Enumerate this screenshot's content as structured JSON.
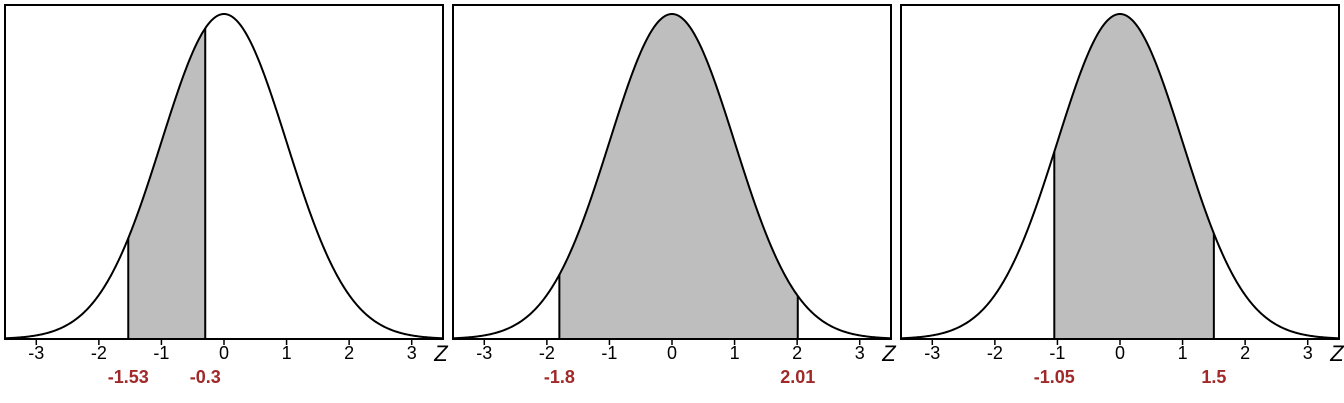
{
  "chart_data": [
    {
      "type": "area",
      "title": "",
      "xlabel": "Z",
      "ylabel": "",
      "xlim": [
        -3.5,
        3.5
      ],
      "x_ticks": [
        "-3",
        "-2",
        "-1",
        "0",
        "1",
        "2",
        "3"
      ],
      "curve": "standard normal density",
      "shaded_interval": [
        -1.53,
        -0.3
      ],
      "bound_labels": [
        "-1.53",
        "-0.3"
      ],
      "grid": false,
      "legend": "none"
    },
    {
      "type": "area",
      "title": "",
      "xlabel": "Z",
      "ylabel": "",
      "xlim": [
        -3.5,
        3.5
      ],
      "x_ticks": [
        "-3",
        "-2",
        "-1",
        "0",
        "1",
        "2",
        "3"
      ],
      "curve": "standard normal density",
      "shaded_interval": [
        -1.8,
        2.01
      ],
      "bound_labels": [
        "-1.8",
        "2.01"
      ],
      "grid": false,
      "legend": "none"
    },
    {
      "type": "area",
      "title": "",
      "xlabel": "Z",
      "ylabel": "",
      "xlim": [
        -3.5,
        3.5
      ],
      "x_ticks": [
        "-3",
        "-2",
        "-1",
        "0",
        "1",
        "2",
        "3"
      ],
      "curve": "standard normal density",
      "shaded_interval": [
        -1.05,
        1.5
      ],
      "bound_labels": [
        "-1.05",
        "1.5"
      ],
      "grid": false,
      "legend": "none"
    }
  ],
  "colors": {
    "shade": "#bebebe",
    "curve": "#000000",
    "bound_label": "#a0292a"
  }
}
